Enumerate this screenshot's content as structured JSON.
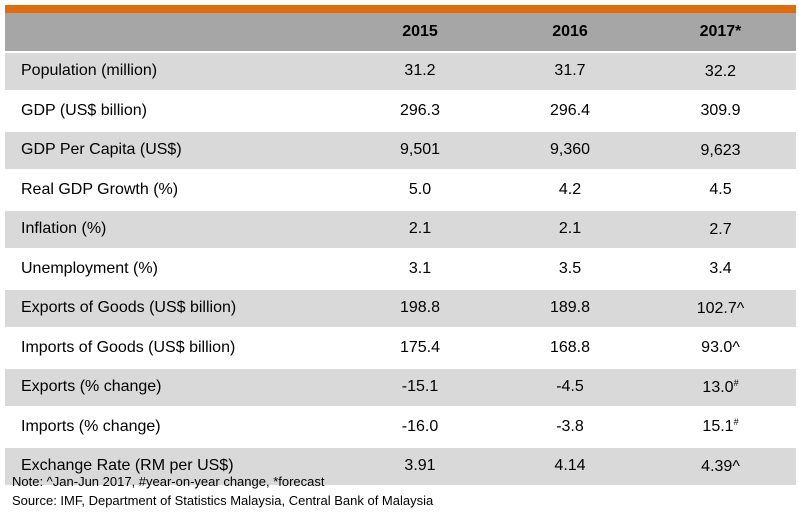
{
  "table": {
    "columns": [
      "",
      "2015",
      "2016",
      "2017*"
    ],
    "rows": [
      {
        "label": "Population (million)",
        "v2015": "31.2",
        "v2016": "31.7",
        "v2017": "32.2",
        "mark": ""
      },
      {
        "label": "GDP (US$ billion)",
        "v2015": "296.3",
        "v2016": "296.4",
        "v2017": "309.9",
        "mark": ""
      },
      {
        "label": "GDP Per Capita (US$)",
        "v2015": "9,501",
        "v2016": "9,360",
        "v2017": "9,623",
        "mark": ""
      },
      {
        "label": "Real GDP Growth (%)",
        "v2015": "5.0",
        "v2016": "4.2",
        "v2017": "4.5",
        "mark": ""
      },
      {
        "label": "Inflation (%)",
        "v2015": "2.1",
        "v2016": "2.1",
        "v2017": "2.7",
        "mark": ""
      },
      {
        "label": "Unemployment (%)",
        "v2015": "3.1",
        "v2016": "3.5",
        "v2017": "3.4",
        "mark": ""
      },
      {
        "label": "Exports of Goods (US$ billion)",
        "v2015": "198.8",
        "v2016": "189.8",
        "v2017": "102.7^",
        "mark": ""
      },
      {
        "label": "Imports of Goods (US$ billion)",
        "v2015": "175.4",
        "v2016": "168.8",
        "v2017": "93.0^",
        "mark": ""
      },
      {
        "label": "Exports (% change)",
        "v2015": "-15.1",
        "v2016": "-4.5",
        "v2017": "13.0",
        "mark": "#"
      },
      {
        "label": "Imports (% change)",
        "v2015": "-16.0",
        "v2016": "-3.8",
        "v2017": "15.1",
        "mark": "#"
      },
      {
        "label": "Exchange Rate (RM per US$)",
        "v2015": "3.91",
        "v2016": "4.14",
        "v2017": "4.39^",
        "mark": ""
      }
    ]
  },
  "note": "Note: ^Jan-Jun 2017, #year-on-year change, *forecast",
  "source": "Source: IMF, Department of Statistics Malaysia, Central Bank of Malaysia",
  "colors": {
    "accent": "#e36c0a",
    "header": "#a6a6a6",
    "shade": "#d9d9d9"
  }
}
